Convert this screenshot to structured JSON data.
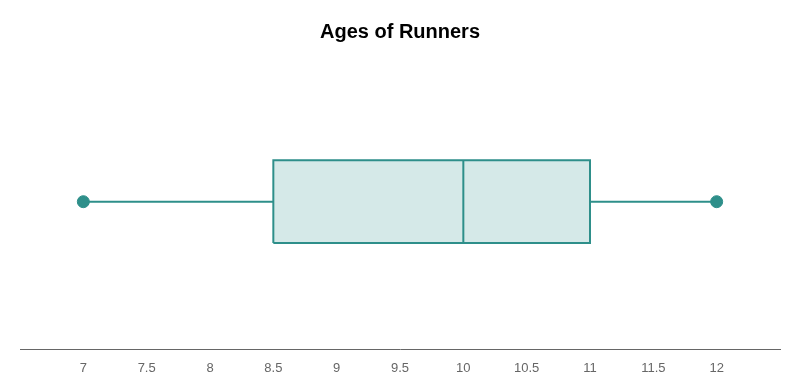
{
  "chart_data": {
    "type": "box",
    "title": "Ages of Runners",
    "min": 7,
    "q1": 8.5,
    "median": 10,
    "q3": 11,
    "max": 12,
    "xlim": [
      6.5,
      12.5
    ],
    "xticks": [
      7,
      7.5,
      8,
      8.5,
      9,
      9.5,
      10,
      10.5,
      11,
      11.5,
      12
    ],
    "color": "#2e8f8a",
    "grid": false,
    "tick_labels": "x"
  }
}
